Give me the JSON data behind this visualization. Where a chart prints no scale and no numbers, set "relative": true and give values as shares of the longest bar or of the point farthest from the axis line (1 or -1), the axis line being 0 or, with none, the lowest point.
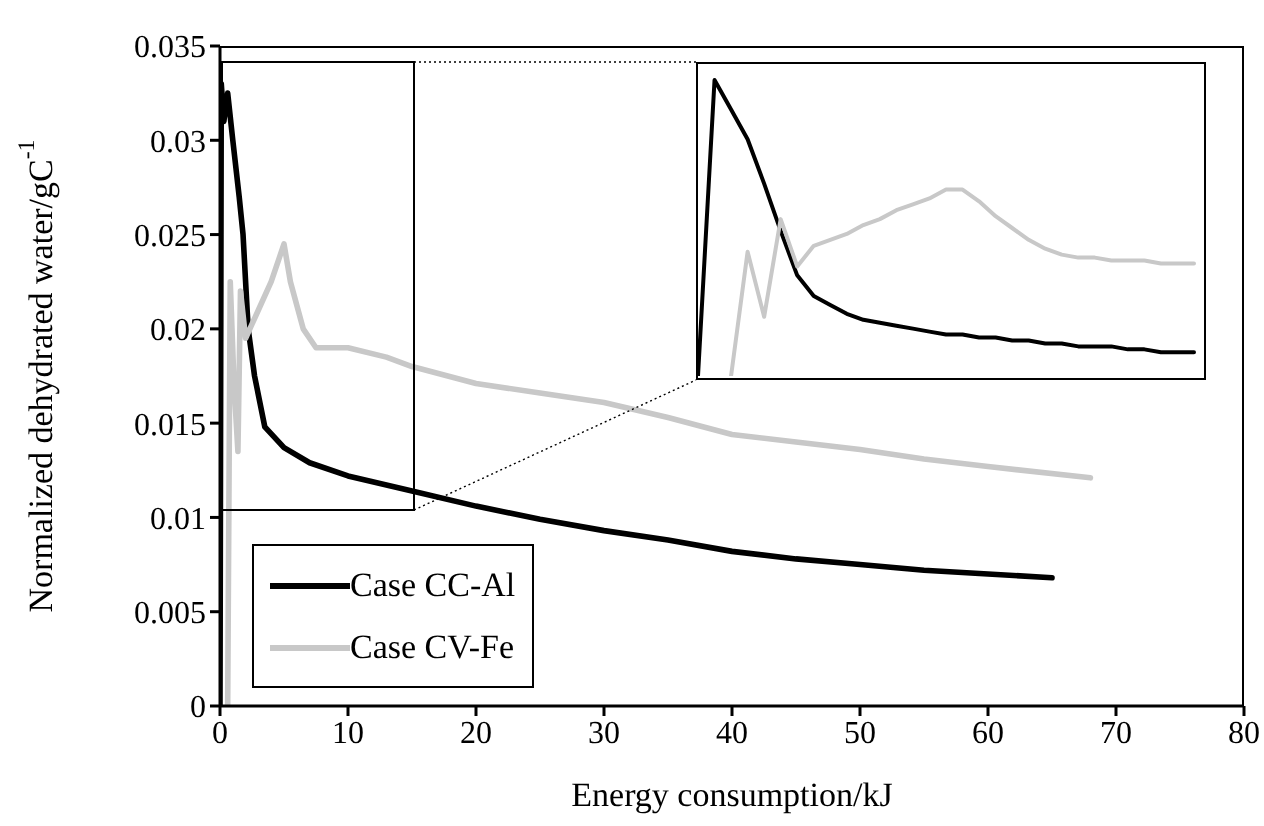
{
  "chart_data": [
    {
      "type": "line",
      "xlabel": "Energy consumption/kJ",
      "ylabel": "Normalized dehydrated water/gC$^{-1}$",
      "xlim": [
        0,
        80
      ],
      "xticks": [
        0,
        10,
        20,
        30,
        40,
        50,
        60,
        70,
        80
      ],
      "ylim": [
        0,
        0.035
      ],
      "yticks": [
        0,
        0.005,
        0.01,
        0.015,
        0.02,
        0.025,
        0.03,
        0.035
      ],
      "grid": false,
      "legend": "bottom left",
      "marker": "none",
      "line_style": "solid",
      "series": [
        {
          "name": "Case CC-Al",
          "color": "#000000",
          "x": [
            0,
            0.1,
            0.3,
            0.6,
            1.0,
            1.5,
            1.8,
            2.2,
            2.7,
            3.5,
            5,
            7,
            10,
            15,
            20,
            25,
            30,
            35,
            40,
            45,
            50,
            55,
            60,
            65
          ],
          "values": [
            0,
            0.033,
            0.031,
            0.0325,
            0.03,
            0.027,
            0.025,
            0.02,
            0.0175,
            0.0148,
            0.0137,
            0.0129,
            0.0122,
            0.0114,
            0.0106,
            0.0099,
            0.0093,
            0.0088,
            0.0082,
            0.0078,
            0.0075,
            0.0072,
            0.007,
            0.0068
          ]
        },
        {
          "name": "Case CV-Fe",
          "color": "#c8c8c8",
          "x": [
            0.6,
            0.8,
            1.1,
            1.4,
            1.6,
            2.0,
            3,
            4,
            5,
            5.5,
            6.5,
            7.5,
            10,
            13,
            15,
            20,
            25,
            30,
            35,
            40,
            45,
            50,
            55,
            60,
            68
          ],
          "values": [
            0,
            0.0225,
            0.017,
            0.0135,
            0.022,
            0.0195,
            0.021,
            0.0225,
            0.0245,
            0.0225,
            0.02,
            0.019,
            0.019,
            0.0185,
            0.018,
            0.0171,
            0.0166,
            0.0161,
            0.0153,
            0.0144,
            0.014,
            0.0136,
            0.0131,
            0.0127,
            0.0121
          ]
        }
      ]
    },
    {
      "type": "line",
      "relative": true,
      "categories": [
        null,
        null,
        null,
        null,
        null,
        null,
        null,
        null,
        null,
        null,
        null,
        null,
        null,
        null,
        null,
        null,
        null,
        null,
        null,
        null,
        null,
        null,
        null,
        null,
        null,
        null,
        null,
        null,
        null,
        null,
        null
      ],
      "grid": false,
      "legend": false,
      "marker": "none",
      "line_style": "solid",
      "series": [
        {
          "color": "#000000",
          "values": [
            0,
            1,
            0.9,
            0.8,
            0.65,
            0.49,
            0.34,
            0.27,
            0.24,
            0.21,
            0.19,
            0.18,
            0.17,
            0.16,
            0.15,
            0.14,
            0.14,
            0.13,
            0.13,
            0.12,
            0.12,
            0.11,
            0.11,
            0.1,
            0.1,
            0.1,
            0.09,
            0.09,
            0.08,
            0.08,
            0.08
          ]
        },
        {
          "color": "#c8c8c8",
          "values": [
            null,
            null,
            0,
            0.42,
            0.2,
            0.53,
            0.37,
            0.44,
            0.46,
            0.48,
            0.51,
            0.53,
            0.56,
            0.58,
            0.6,
            0.63,
            0.63,
            0.59,
            0.54,
            0.5,
            0.46,
            0.43,
            0.41,
            0.4,
            0.4,
            0.39,
            0.39,
            0.39,
            0.38,
            0.38,
            0.38
          ]
        }
      ]
    }
  ]
}
